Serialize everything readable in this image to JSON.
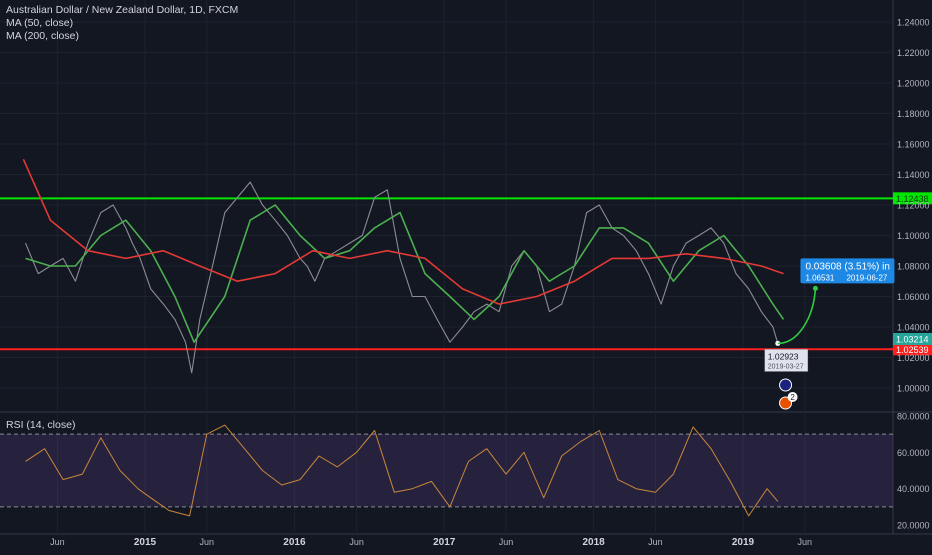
{
  "header": {
    "title": "Australian Dollar / New Zealand Dollar, 1D, FXCM",
    "ma50_label": "MA (50, close)",
    "ma200_label": "MA (200, close)"
  },
  "rsi_panel": {
    "label": "RSI (14, close)"
  },
  "colors": {
    "background": "#131722",
    "price": "#8c8c93",
    "ma50": "#4caf50",
    "ma200": "#e53935",
    "resistance": "#00e600",
    "support": "#ff1f1f",
    "rsi_line": "#c8873a",
    "rsi_band": "#7e57c2",
    "forecast": "#2ecc40",
    "callout": "#1e88e5",
    "last_price_tag": "#26a69a"
  },
  "chart_data": [
    {
      "type": "line",
      "title": "Australian Dollar / New Zealand Dollar, 1D, FXCM",
      "xlabel": "",
      "ylabel": "",
      "x_tick_labels": [
        "Jun",
        "2015",
        "Jun",
        "2016",
        "Jun",
        "2017",
        "Jun",
        "2018",
        "Jun",
        "2019",
        "Jun"
      ],
      "y_tick_labels": [
        "1.00000",
        "1.02000",
        "1.04000",
        "1.06000",
        "1.08000",
        "1.10000",
        "1.12000",
        "1.14000",
        "1.16000",
        "1.18000",
        "1.20000",
        "1.22000",
        "1.24000"
      ],
      "ylim": [
        0.985,
        1.245
      ],
      "x_domain": [
        "2014-03-15",
        "2019-09-01"
      ],
      "grid": true,
      "series": [
        {
          "name": "",
          "role": "price",
          "x": [
            "2014-03-15",
            "2014-04-15",
            "2014-05-15",
            "2014-06-15",
            "2014-07-15",
            "2014-08-15",
            "2014-09-15",
            "2014-10-15",
            "2014-11-15",
            "2014-12-01",
            "2014-12-20",
            "2015-01-15",
            "2015-02-15",
            "2015-03-15",
            "2015-04-10",
            "2015-04-25",
            "2015-05-15",
            "2015-06-15",
            "2015-07-15",
            "2015-08-15",
            "2015-09-15",
            "2015-10-15",
            "2015-11-15",
            "2015-12-15",
            "2016-01-15",
            "2016-02-01",
            "2016-02-20",
            "2016-03-15",
            "2016-04-15",
            "2016-05-15",
            "2016-06-15",
            "2016-07-15",
            "2016-08-15",
            "2016-09-15",
            "2016-10-15",
            "2016-11-15",
            "2016-12-15",
            "2017-01-15",
            "2017-02-15",
            "2017-03-15",
            "2017-04-15",
            "2017-05-15",
            "2017-06-15",
            "2017-07-15",
            "2017-08-15",
            "2017-09-15",
            "2017-10-15",
            "2017-11-15",
            "2017-12-15",
            "2018-01-15",
            "2018-02-15",
            "2018-03-15",
            "2018-04-15",
            "2018-05-15",
            "2018-06-15",
            "2018-07-15",
            "2018-08-15",
            "2018-09-15",
            "2018-10-15",
            "2018-11-15",
            "2018-12-15",
            "2019-01-15",
            "2019-02-15",
            "2019-03-15",
            "2019-03-27"
          ],
          "values": [
            1.095,
            1.075,
            1.08,
            1.085,
            1.07,
            1.095,
            1.115,
            1.12,
            1.105,
            1.095,
            1.085,
            1.065,
            1.055,
            1.045,
            1.03,
            1.01,
            1.045,
            1.08,
            1.115,
            1.125,
            1.135,
            1.12,
            1.11,
            1.1,
            1.085,
            1.08,
            1.07,
            1.085,
            1.09,
            1.095,
            1.1,
            1.125,
            1.13,
            1.085,
            1.06,
            1.06,
            1.045,
            1.03,
            1.04,
            1.05,
            1.055,
            1.05,
            1.08,
            1.09,
            1.08,
            1.05,
            1.055,
            1.08,
            1.115,
            1.12,
            1.105,
            1.1,
            1.09,
            1.075,
            1.055,
            1.08,
            1.095,
            1.1,
            1.105,
            1.095,
            1.075,
            1.065,
            1.05,
            1.04,
            1.02923
          ]
        },
        {
          "name": "MA (50, close)",
          "role": "ma50",
          "x": [
            "2014-03-15",
            "2014-05-15",
            "2014-07-15",
            "2014-09-15",
            "2014-11-15",
            "2015-01-15",
            "2015-03-15",
            "2015-05-01",
            "2015-07-15",
            "2015-09-15",
            "2015-11-15",
            "2016-01-15",
            "2016-03-15",
            "2016-05-15",
            "2016-07-15",
            "2016-09-15",
            "2016-11-15",
            "2017-01-15",
            "2017-03-15",
            "2017-05-15",
            "2017-07-15",
            "2017-09-15",
            "2017-11-15",
            "2018-01-15",
            "2018-03-15",
            "2018-05-15",
            "2018-07-15",
            "2018-09-15",
            "2018-11-15",
            "2019-01-15",
            "2019-03-15",
            "2019-04-10"
          ],
          "values": [
            1.085,
            1.08,
            1.08,
            1.1,
            1.11,
            1.09,
            1.06,
            1.03,
            1.06,
            1.11,
            1.12,
            1.1,
            1.085,
            1.09,
            1.105,
            1.115,
            1.075,
            1.06,
            1.045,
            1.06,
            1.09,
            1.07,
            1.08,
            1.105,
            1.105,
            1.095,
            1.07,
            1.09,
            1.1,
            1.08,
            1.055,
            1.045
          ]
        },
        {
          "name": "MA (200, close)",
          "role": "ma200",
          "x": [
            "2014-03-10",
            "2014-05-15",
            "2014-08-15",
            "2014-11-15",
            "2015-02-15",
            "2015-05-15",
            "2015-08-15",
            "2015-11-15",
            "2016-02-15",
            "2016-05-15",
            "2016-08-15",
            "2016-11-15",
            "2017-02-15",
            "2017-05-15",
            "2017-08-15",
            "2017-11-15",
            "2018-02-15",
            "2018-05-15",
            "2018-08-15",
            "2018-11-15",
            "2019-02-15",
            "2019-04-10"
          ],
          "values": [
            1.15,
            1.11,
            1.09,
            1.085,
            1.09,
            1.08,
            1.07,
            1.075,
            1.09,
            1.085,
            1.09,
            1.085,
            1.065,
            1.055,
            1.06,
            1.07,
            1.085,
            1.085,
            1.088,
            1.085,
            1.08,
            1.075
          ]
        }
      ],
      "horizontal_lines": [
        {
          "value": 1.12438,
          "label": "1.12438"
        },
        {
          "value": 1.02539,
          "label": "1.02539"
        }
      ],
      "last_price": {
        "value": 1.03214,
        "label": "1.03214"
      },
      "annotations": [
        {
          "type": "point_label",
          "x": "2019-03-27",
          "y": 1.02923,
          "price_label": "1.02923",
          "date_label": "2019-03-27"
        },
        {
          "type": "forecast_callout",
          "from_x": "2019-03-27",
          "from_y": 1.02923,
          "to_x": "2019-06-27",
          "to_y": 1.06531,
          "change_label": "0.03608 (3.51%) in",
          "price_label": "1.06531",
          "date_label": "2019-06-27"
        },
        {
          "type": "event_marker",
          "x": "2019-04-15",
          "badge": ""
        },
        {
          "type": "event_marker",
          "x": "2019-04-15",
          "badge": "2"
        }
      ]
    },
    {
      "type": "line",
      "title": "RSI (14, close)",
      "ylim": [
        15,
        82
      ],
      "y_tick_labels": [
        "20.0000",
        "40.0000",
        "60.0000",
        "80.0000"
      ],
      "bands": [
        30,
        70
      ],
      "grid": true,
      "series": [
        {
          "name": "RSI (14, close)",
          "x": [
            "2014-03-15",
            "2014-05-01",
            "2014-06-15",
            "2014-08-01",
            "2014-09-15",
            "2014-11-01",
            "2014-12-15",
            "2015-01-15",
            "2015-03-01",
            "2015-04-20",
            "2015-06-01",
            "2015-07-15",
            "2015-09-01",
            "2015-10-15",
            "2015-12-01",
            "2016-01-15",
            "2016-03-01",
            "2016-04-15",
            "2016-06-01",
            "2016-07-15",
            "2016-09-01",
            "2016-10-15",
            "2016-12-01",
            "2017-01-15",
            "2017-03-01",
            "2017-04-15",
            "2017-06-01",
            "2017-07-15",
            "2017-09-01",
            "2017-10-15",
            "2017-12-01",
            "2018-01-15",
            "2018-03-01",
            "2018-04-15",
            "2018-06-01",
            "2018-07-15",
            "2018-09-01",
            "2018-10-15",
            "2018-12-01",
            "2019-01-15",
            "2019-03-01",
            "2019-03-27"
          ],
          "values": [
            55,
            62,
            45,
            48,
            68,
            50,
            40,
            35,
            28,
            25,
            70,
            75,
            62,
            50,
            42,
            45,
            58,
            52,
            60,
            72,
            38,
            40,
            44,
            30,
            55,
            62,
            48,
            60,
            35,
            58,
            66,
            72,
            45,
            40,
            38,
            48,
            74,
            62,
            44,
            25,
            40,
            33
          ]
        }
      ]
    }
  ]
}
